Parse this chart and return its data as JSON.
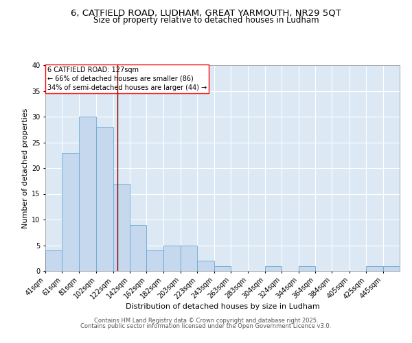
{
  "title_line1": "6, CATFIELD ROAD, LUDHAM, GREAT YARMOUTH, NR29 5QT",
  "title_line2": "Size of property relative to detached houses in Ludham",
  "xlabel": "Distribution of detached houses by size in Ludham",
  "ylabel": "Number of detached properties",
  "bar_labels": [
    "41sqm",
    "61sqm",
    "81sqm",
    "102sqm",
    "122sqm",
    "142sqm",
    "162sqm",
    "182sqm",
    "203sqm",
    "223sqm",
    "243sqm",
    "263sqm",
    "283sqm",
    "304sqm",
    "324sqm",
    "344sqm",
    "364sqm",
    "384sqm",
    "405sqm",
    "425sqm",
    "445sqm"
  ],
  "bar_values": [
    4,
    23,
    30,
    28,
    17,
    9,
    4,
    5,
    5,
    2,
    1,
    0,
    0,
    1,
    0,
    1,
    0,
    0,
    0,
    1,
    1
  ],
  "bar_color": "#c5d8ed",
  "bar_edge_color": "#6aaad4",
  "background_color": "#dce9f5",
  "grid_color": "#ffffff",
  "red_line_x": 127,
  "bins": [
    41,
    61,
    81,
    102,
    122,
    142,
    162,
    182,
    203,
    223,
    243,
    263,
    283,
    304,
    324,
    344,
    364,
    384,
    405,
    425,
    445,
    465
  ],
  "annotation_text": "6 CATFIELD ROAD: 127sqm\n← 66% of detached houses are smaller (86)\n34% of semi-detached houses are larger (44) →",
  "ylim": [
    0,
    40
  ],
  "yticks": [
    0,
    5,
    10,
    15,
    20,
    25,
    30,
    35,
    40
  ],
  "footer_line1": "Contains HM Land Registry data © Crown copyright and database right 2025.",
  "footer_line2": "Contains public sector information licensed under the Open Government Licence v3.0.",
  "title_fontsize": 9.5,
  "subtitle_fontsize": 8.5,
  "axis_label_fontsize": 8,
  "tick_fontsize": 7,
  "annotation_fontsize": 7,
  "footer_fontsize": 6
}
